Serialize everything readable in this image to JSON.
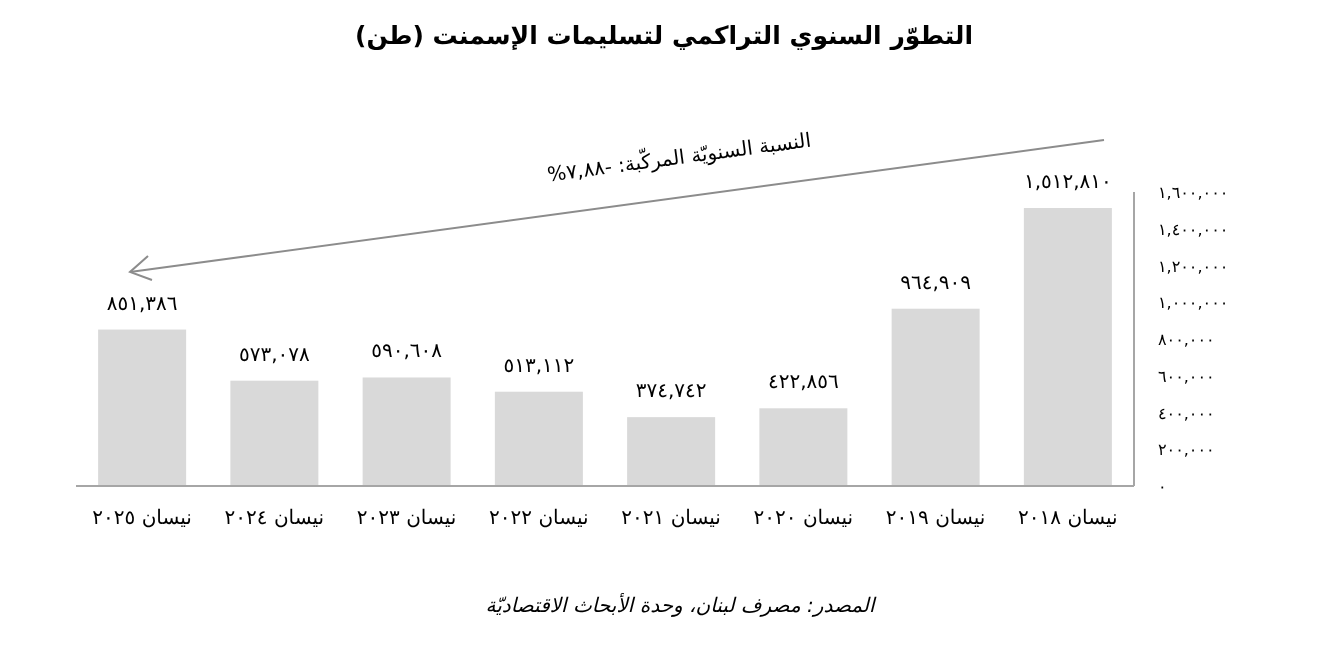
{
  "chart_data": {
    "type": "bar",
    "title": "التطوّر السنوي التراكمي لتسليمات الإسمنت (طن)",
    "categories": [
      "نيسان ٢٠٢٥",
      "نيسان ٢٠٢٤",
      "نيسان ٢٠٢٣",
      "نيسان ٢٠٢٢",
      "نيسان ٢٠٢١",
      "نيسان ٢٠٢٠",
      "نيسان ٢٠١٩",
      "نيسان ٢٠١٨"
    ],
    "values": [
      851386,
      573078,
      590608,
      513112,
      374742,
      422856,
      964909,
      1512810
    ],
    "value_labels": [
      "٨٥١,٣٨٦",
      "٥٧٣,٠٧٨",
      "٥٩٠,٦٠٨",
      "٥١٣,١١٢",
      "٣٧٤,٧٤٢",
      "٤٢٢,٨٥٦",
      "٩٦٤,٩٠٩",
      "١,٥١٢,٨١٠"
    ],
    "color": "#d9d9d9",
    "ylim": [
      0,
      1600000
    ],
    "yticks": [
      {
        "value": 0,
        "label": "٠"
      },
      {
        "value": 200000,
        "label": "٢٠٠,٠٠٠"
      },
      {
        "value": 400000,
        "label": "٤٠٠,٠٠٠"
      },
      {
        "value": 600000,
        "label": "٦٠٠,٠٠٠"
      },
      {
        "value": 800000,
        "label": "٨٠٠,٠٠٠"
      },
      {
        "value": 1000000,
        "label": "١,٠٠٠,٠٠٠"
      },
      {
        "value": 1200000,
        "label": "١,٢٠٠,٠٠٠"
      },
      {
        "value": 1400000,
        "label": "١,٤٠٠,٠٠٠"
      },
      {
        "value": 1600000,
        "label": "١,٦٠٠,٠٠٠"
      }
    ],
    "annotations": [
      "النسبة السنويّة المركّبة: -٧,٨٨%",
      "المصدر: مصرف لبنان، وحدة الأبحاث الاقتصاديّة"
    ]
  }
}
